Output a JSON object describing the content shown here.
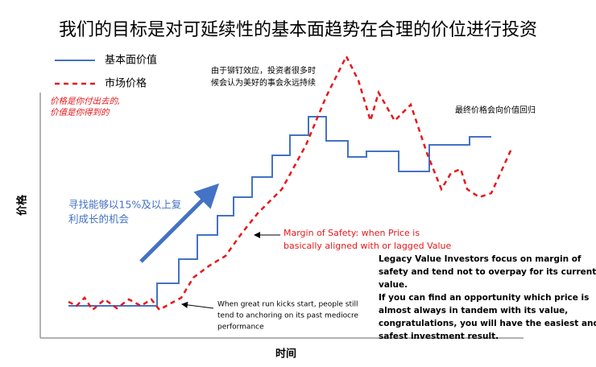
{
  "title": "我们的目标是对可延续性的基本面趋势在合理的价位进行投资",
  "legend": [
    "基本面价值",
    "市场价格"
  ],
  "price_note": [
    "价格是你付出去的,",
    "价值是你得到的"
  ],
  "y_label": "价格",
  "x_label": "时间",
  "growth_note": [
    "寻找能够以15%及以上复",
    "利成长的机会"
  ],
  "anchoring_note": [
    "由于铆钉效应，投资者很多时",
    "候会认为美好的事会永远持续"
  ],
  "reversion_note": "最终价格会向价值回归",
  "margin_note": [
    "Margin of Safety: when Price is",
    "basically aligned with or lagged Value"
  ],
  "start_note": [
    "When great run kicks start, people still",
    "tend to anchoring on its past mediocre",
    "performance"
  ],
  "summary": [
    "Legacy Value Investors focus on margin of",
    "safety and tend not to overpay for its current",
    "value.",
    "If you can find an opportunity which price is",
    "almost always in tandem with its value,",
    "congratulations, you will have the easiest and",
    "safest investment result."
  ]
}
